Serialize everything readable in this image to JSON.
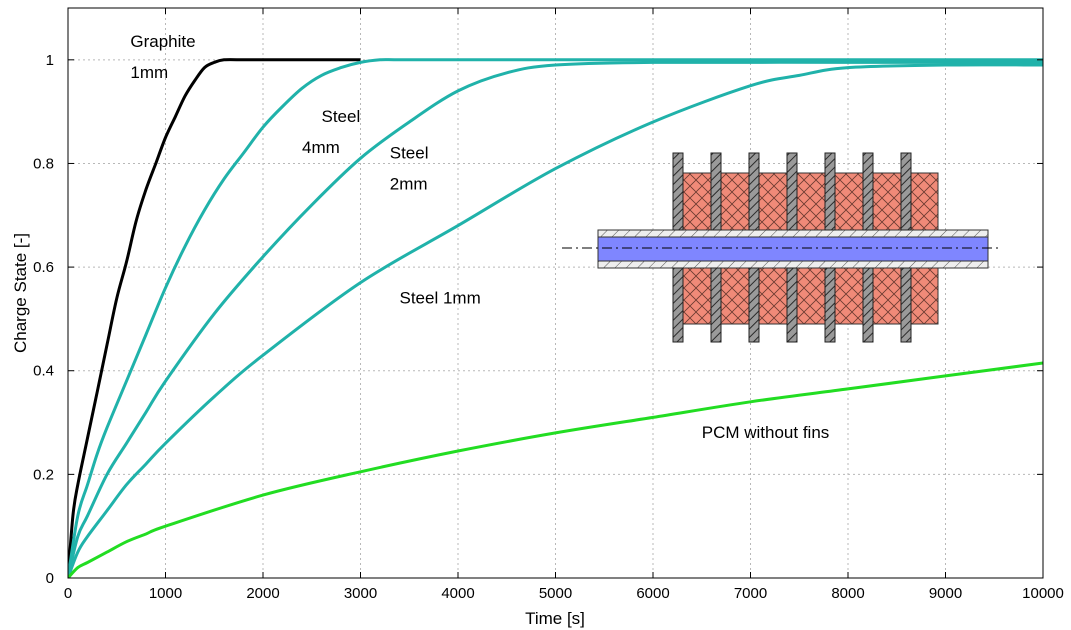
{
  "chart_data": {
    "type": "line",
    "xlabel": "Time [s]",
    "ylabel": "Charge State [-]",
    "xlim": [
      0,
      10000
    ],
    "ylim": [
      0,
      1.1
    ],
    "xticks": [
      0,
      1000,
      2000,
      3000,
      4000,
      5000,
      6000,
      7000,
      8000,
      9000,
      10000
    ],
    "yticks": [
      0,
      0.2,
      0.4,
      0.6,
      0.8,
      1
    ],
    "ytick_labels": [
      "0",
      "0.2",
      "0.4",
      "0.6",
      "0.8",
      "1"
    ],
    "grid": true,
    "series": [
      {
        "color": "#000000",
        "x": [
          0,
          50,
          100,
          200,
          300,
          400,
          500,
          600,
          700,
          800,
          900,
          1000,
          1100,
          1200,
          1300,
          1400,
          1500,
          1600,
          1800,
          2000,
          2500,
          3000
        ],
        "y": [
          0,
          0.12,
          0.18,
          0.27,
          0.36,
          0.45,
          0.54,
          0.61,
          0.69,
          0.75,
          0.8,
          0.85,
          0.89,
          0.93,
          0.96,
          0.985,
          0.995,
          1.0,
          1.0,
          1.0,
          1.0,
          1.0
        ]
      },
      {
        "color": "#20b2aa",
        "x": [
          0,
          100,
          200,
          300,
          400,
          600,
          800,
          1000,
          1200,
          1400,
          1600,
          1800,
          2000,
          2200,
          2400,
          2600,
          2800,
          3000,
          3200,
          3400,
          4000,
          6000,
          8000,
          10000
        ],
        "y": [
          0,
          0.12,
          0.18,
          0.24,
          0.29,
          0.38,
          0.47,
          0.56,
          0.64,
          0.71,
          0.77,
          0.82,
          0.87,
          0.91,
          0.945,
          0.97,
          0.985,
          0.995,
          1.0,
          1.0,
          1.0,
          1.0,
          1.0,
          1.0
        ]
      },
      {
        "color": "#20b2aa",
        "x": [
          0,
          100,
          200,
          400,
          600,
          800,
          1000,
          1500,
          2000,
          2500,
          3000,
          3500,
          4000,
          4500,
          5000,
          6000,
          8000,
          10000
        ],
        "y": [
          0,
          0.08,
          0.12,
          0.2,
          0.26,
          0.32,
          0.38,
          0.51,
          0.62,
          0.72,
          0.81,
          0.88,
          0.94,
          0.975,
          0.99,
          0.995,
          0.995,
          0.995
        ]
      },
      {
        "color": "#20b2aa",
        "x": [
          0,
          100,
          200,
          400,
          600,
          800,
          1000,
          1500,
          2000,
          3000,
          4000,
          5000,
          6000,
          7000,
          7500,
          8000,
          9000,
          10000
        ],
        "y": [
          0,
          0.05,
          0.08,
          0.13,
          0.18,
          0.22,
          0.26,
          0.35,
          0.43,
          0.57,
          0.68,
          0.79,
          0.88,
          0.95,
          0.97,
          0.985,
          0.99,
          0.99
        ]
      },
      {
        "color": "#22dd22",
        "x": [
          0,
          100,
          200,
          400,
          600,
          800,
          1000,
          2000,
          3000,
          4000,
          5000,
          6000,
          7000,
          8000,
          9000,
          10000
        ],
        "y": [
          0,
          0.02,
          0.03,
          0.05,
          0.07,
          0.085,
          0.1,
          0.16,
          0.205,
          0.245,
          0.28,
          0.31,
          0.34,
          0.365,
          0.39,
          0.415
        ]
      }
    ],
    "annotations": [
      {
        "text": "Graphite",
        "x": 640,
        "y": 1.025
      },
      {
        "text": "1mm",
        "x": 640,
        "y": 0.965
      },
      {
        "text": "Steel",
        "x": 2600,
        "y": 0.88
      },
      {
        "text": "4mm",
        "x": 2400,
        "y": 0.82
      },
      {
        "text": "Steel",
        "x": 3300,
        "y": 0.81
      },
      {
        "text": "2mm",
        "x": 3300,
        "y": 0.75
      },
      {
        "text": "Steel 1mm",
        "x": 3400,
        "y": 0.53
      },
      {
        "text": "PCM without fins",
        "x": 6500,
        "y": 0.27
      }
    ],
    "inset": {
      "pcm_color": "#f08a78",
      "fin_color": "#888888",
      "tube_color": "#7f86ff"
    }
  }
}
